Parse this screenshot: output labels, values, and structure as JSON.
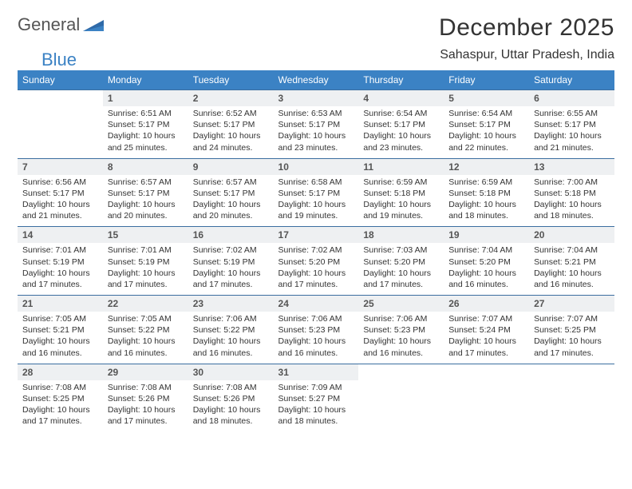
{
  "brand": {
    "name1": "General",
    "name2": "Blue"
  },
  "title": "December 2025",
  "location": "Sahaspur, Uttar Pradesh, India",
  "colors": {
    "header_bg": "#3b82c4",
    "header_text": "#ffffff",
    "daynum_bg": "#eef0f2",
    "row_border": "#3b6ea0",
    "text": "#333333"
  },
  "weekdays": [
    "Sunday",
    "Monday",
    "Tuesday",
    "Wednesday",
    "Thursday",
    "Friday",
    "Saturday"
  ],
  "weeks": [
    {
      "nums": [
        "",
        "1",
        "2",
        "3",
        "4",
        "5",
        "6"
      ],
      "cells": [
        null,
        {
          "sr": "Sunrise: 6:51 AM",
          "ss": "Sunset: 5:17 PM",
          "d1": "Daylight: 10 hours",
          "d2": "and 25 minutes."
        },
        {
          "sr": "Sunrise: 6:52 AM",
          "ss": "Sunset: 5:17 PM",
          "d1": "Daylight: 10 hours",
          "d2": "and 24 minutes."
        },
        {
          "sr": "Sunrise: 6:53 AM",
          "ss": "Sunset: 5:17 PM",
          "d1": "Daylight: 10 hours",
          "d2": "and 23 minutes."
        },
        {
          "sr": "Sunrise: 6:54 AM",
          "ss": "Sunset: 5:17 PM",
          "d1": "Daylight: 10 hours",
          "d2": "and 23 minutes."
        },
        {
          "sr": "Sunrise: 6:54 AM",
          "ss": "Sunset: 5:17 PM",
          "d1": "Daylight: 10 hours",
          "d2": "and 22 minutes."
        },
        {
          "sr": "Sunrise: 6:55 AM",
          "ss": "Sunset: 5:17 PM",
          "d1": "Daylight: 10 hours",
          "d2": "and 21 minutes."
        }
      ]
    },
    {
      "nums": [
        "7",
        "8",
        "9",
        "10",
        "11",
        "12",
        "13"
      ],
      "cells": [
        {
          "sr": "Sunrise: 6:56 AM",
          "ss": "Sunset: 5:17 PM",
          "d1": "Daylight: 10 hours",
          "d2": "and 21 minutes."
        },
        {
          "sr": "Sunrise: 6:57 AM",
          "ss": "Sunset: 5:17 PM",
          "d1": "Daylight: 10 hours",
          "d2": "and 20 minutes."
        },
        {
          "sr": "Sunrise: 6:57 AM",
          "ss": "Sunset: 5:17 PM",
          "d1": "Daylight: 10 hours",
          "d2": "and 20 minutes."
        },
        {
          "sr": "Sunrise: 6:58 AM",
          "ss": "Sunset: 5:17 PM",
          "d1": "Daylight: 10 hours",
          "d2": "and 19 minutes."
        },
        {
          "sr": "Sunrise: 6:59 AM",
          "ss": "Sunset: 5:18 PM",
          "d1": "Daylight: 10 hours",
          "d2": "and 19 minutes."
        },
        {
          "sr": "Sunrise: 6:59 AM",
          "ss": "Sunset: 5:18 PM",
          "d1": "Daylight: 10 hours",
          "d2": "and 18 minutes."
        },
        {
          "sr": "Sunrise: 7:00 AM",
          "ss": "Sunset: 5:18 PM",
          "d1": "Daylight: 10 hours",
          "d2": "and 18 minutes."
        }
      ]
    },
    {
      "nums": [
        "14",
        "15",
        "16",
        "17",
        "18",
        "19",
        "20"
      ],
      "cells": [
        {
          "sr": "Sunrise: 7:01 AM",
          "ss": "Sunset: 5:19 PM",
          "d1": "Daylight: 10 hours",
          "d2": "and 17 minutes."
        },
        {
          "sr": "Sunrise: 7:01 AM",
          "ss": "Sunset: 5:19 PM",
          "d1": "Daylight: 10 hours",
          "d2": "and 17 minutes."
        },
        {
          "sr": "Sunrise: 7:02 AM",
          "ss": "Sunset: 5:19 PM",
          "d1": "Daylight: 10 hours",
          "d2": "and 17 minutes."
        },
        {
          "sr": "Sunrise: 7:02 AM",
          "ss": "Sunset: 5:20 PM",
          "d1": "Daylight: 10 hours",
          "d2": "and 17 minutes."
        },
        {
          "sr": "Sunrise: 7:03 AM",
          "ss": "Sunset: 5:20 PM",
          "d1": "Daylight: 10 hours",
          "d2": "and 17 minutes."
        },
        {
          "sr": "Sunrise: 7:04 AM",
          "ss": "Sunset: 5:20 PM",
          "d1": "Daylight: 10 hours",
          "d2": "and 16 minutes."
        },
        {
          "sr": "Sunrise: 7:04 AM",
          "ss": "Sunset: 5:21 PM",
          "d1": "Daylight: 10 hours",
          "d2": "and 16 minutes."
        }
      ]
    },
    {
      "nums": [
        "21",
        "22",
        "23",
        "24",
        "25",
        "26",
        "27"
      ],
      "cells": [
        {
          "sr": "Sunrise: 7:05 AM",
          "ss": "Sunset: 5:21 PM",
          "d1": "Daylight: 10 hours",
          "d2": "and 16 minutes."
        },
        {
          "sr": "Sunrise: 7:05 AM",
          "ss": "Sunset: 5:22 PM",
          "d1": "Daylight: 10 hours",
          "d2": "and 16 minutes."
        },
        {
          "sr": "Sunrise: 7:06 AM",
          "ss": "Sunset: 5:22 PM",
          "d1": "Daylight: 10 hours",
          "d2": "and 16 minutes."
        },
        {
          "sr": "Sunrise: 7:06 AM",
          "ss": "Sunset: 5:23 PM",
          "d1": "Daylight: 10 hours",
          "d2": "and 16 minutes."
        },
        {
          "sr": "Sunrise: 7:06 AM",
          "ss": "Sunset: 5:23 PM",
          "d1": "Daylight: 10 hours",
          "d2": "and 16 minutes."
        },
        {
          "sr": "Sunrise: 7:07 AM",
          "ss": "Sunset: 5:24 PM",
          "d1": "Daylight: 10 hours",
          "d2": "and 17 minutes."
        },
        {
          "sr": "Sunrise: 7:07 AM",
          "ss": "Sunset: 5:25 PM",
          "d1": "Daylight: 10 hours",
          "d2": "and 17 minutes."
        }
      ]
    },
    {
      "nums": [
        "28",
        "29",
        "30",
        "31",
        "",
        "",
        ""
      ],
      "cells": [
        {
          "sr": "Sunrise: 7:08 AM",
          "ss": "Sunset: 5:25 PM",
          "d1": "Daylight: 10 hours",
          "d2": "and 17 minutes."
        },
        {
          "sr": "Sunrise: 7:08 AM",
          "ss": "Sunset: 5:26 PM",
          "d1": "Daylight: 10 hours",
          "d2": "and 17 minutes."
        },
        {
          "sr": "Sunrise: 7:08 AM",
          "ss": "Sunset: 5:26 PM",
          "d1": "Daylight: 10 hours",
          "d2": "and 18 minutes."
        },
        {
          "sr": "Sunrise: 7:09 AM",
          "ss": "Sunset: 5:27 PM",
          "d1": "Daylight: 10 hours",
          "d2": "and 18 minutes."
        },
        null,
        null,
        null
      ]
    }
  ]
}
